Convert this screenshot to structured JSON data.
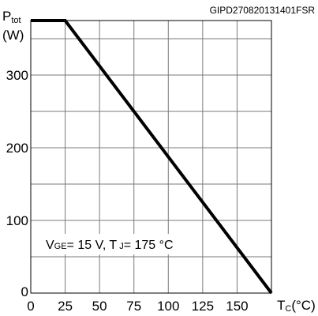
{
  "chart_data": {
    "type": "line",
    "code": "GIPD270820131401FSR",
    "ylabel": {
      "main": "P",
      "sub": "tot",
      "unit": "(W)"
    },
    "xlabel": {
      "main": "T",
      "sub": "C",
      "unit": "(°C)"
    },
    "xlim": [
      0,
      175
    ],
    "ylim": [
      0,
      375
    ],
    "x_ticks": [
      0,
      25,
      50,
      75,
      100,
      125,
      150
    ],
    "x_tick_labels": [
      "0",
      "25",
      "50",
      "75",
      "100",
      "125",
      "150"
    ],
    "y_ticks": [
      0,
      100,
      200,
      300
    ],
    "y_tick_labels": [
      "0",
      "100",
      "200",
      "300"
    ],
    "x_grid": [
      0,
      25,
      50,
      75,
      100,
      125,
      150,
      175
    ],
    "y_grid": [
      0,
      50,
      100,
      150,
      200,
      250,
      300,
      350
    ],
    "grid": true,
    "series": [
      {
        "x": [
          0,
          25,
          175
        ],
        "y": [
          375,
          375,
          0
        ],
        "color": "#000000"
      }
    ],
    "annotation": {
      "v": "V",
      "v_sub": "GE",
      "v_rest": "= 15 V, T",
      "t_sub": "J",
      "t_rest": "= 175 °C"
    }
  }
}
